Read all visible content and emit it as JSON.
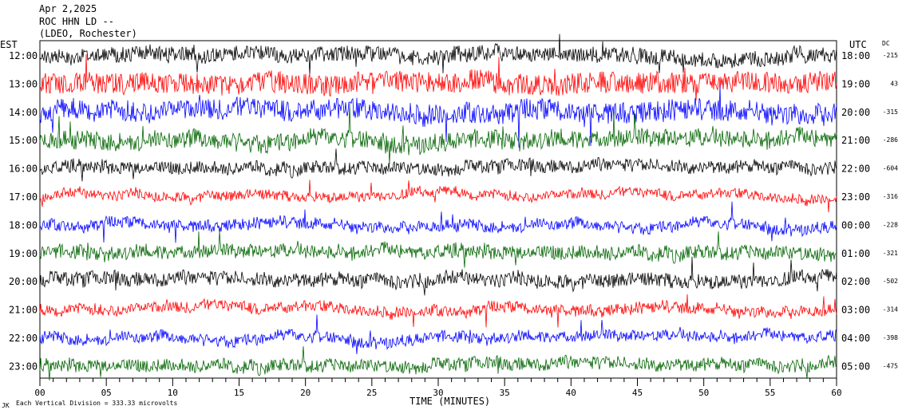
{
  "header": {
    "date": "Apr 2,2025",
    "station": "ROC HHN LD --",
    "network": "(LDEO, Rochester)"
  },
  "left_axis_title": "EST",
  "right_axis_title": "UTC",
  "dc_title": "DC",
  "chart_data": {
    "type": "line",
    "title": "",
    "xlabel": "TIME (MINUTES)",
    "ylabel": "",
    "xlim": [
      0,
      60
    ],
    "x_ticks": [
      "00",
      "05",
      "10",
      "15",
      "20",
      "25",
      "30",
      "35",
      "40",
      "45",
      "50",
      "55",
      "60"
    ],
    "series": [
      {
        "est": "12:00",
        "utc": "18:00",
        "dc": "-215",
        "color": "#000000",
        "amplitude": 0.55
      },
      {
        "est": "13:00",
        "utc": "19:00",
        "dc": "43",
        "color": "#ff0000",
        "amplitude": 0.75
      },
      {
        "est": "14:00",
        "utc": "20:00",
        "dc": "-315",
        "color": "#0000ff",
        "amplitude": 0.75
      },
      {
        "est": "15:00",
        "utc": "21:00",
        "dc": "-286",
        "color": "#006400",
        "amplitude": 0.65
      },
      {
        "est": "16:00",
        "utc": "22:00",
        "dc": "-604",
        "color": "#000000",
        "amplitude": 0.45
      },
      {
        "est": "17:00",
        "utc": "23:00",
        "dc": "-316",
        "color": "#ff0000",
        "amplitude": 0.35
      },
      {
        "est": "18:00",
        "utc": "00:00",
        "dc": "-228",
        "color": "#0000ff",
        "amplitude": 0.4
      },
      {
        "est": "19:00",
        "utc": "01:00",
        "dc": "-321",
        "color": "#006400",
        "amplitude": 0.5
      },
      {
        "est": "20:00",
        "utc": "02:00",
        "dc": "-502",
        "color": "#000000",
        "amplitude": 0.5
      },
      {
        "est": "21:00",
        "utc": "03:00",
        "dc": "-314",
        "color": "#ff0000",
        "amplitude": 0.4
      },
      {
        "est": "22:00",
        "utc": "04:00",
        "dc": "-398",
        "color": "#0000ff",
        "amplitude": 0.4
      },
      {
        "est": "23:00",
        "utc": "05:00",
        "dc": "-475",
        "color": "#006400",
        "amplitude": 0.45
      }
    ]
  },
  "footer": {
    "logo_text": "JK",
    "scale_note": "Each Vertical Division =  333.33 microvolts"
  }
}
